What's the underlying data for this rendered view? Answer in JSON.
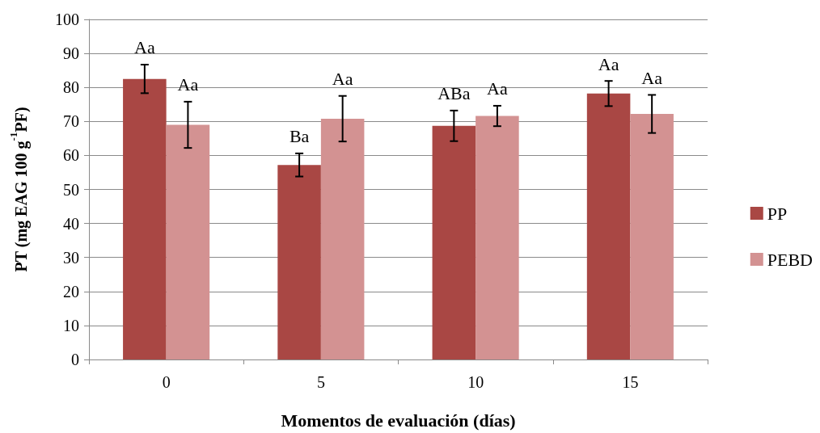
{
  "chart_data": {
    "type": "bar",
    "xlabel": "Momentos de evaluación (días)",
    "ylabel": "PT (mg EAG 100 g$^{-1}$PF)",
    "categories": [
      "0",
      "5",
      "10",
      "15"
    ],
    "series": [
      {
        "name": "PP",
        "color": "#a94744",
        "values": [
          82.5,
          57.2,
          68.7,
          78.2
        ],
        "errors": [
          4.2,
          3.4,
          4.5,
          3.7
        ],
        "value_labels": [
          "Aa",
          "Ba",
          "ABa",
          "Aa"
        ]
      },
      {
        "name": "PEBD",
        "color": "#d39292",
        "values": [
          69.0,
          70.8,
          71.6,
          72.2
        ],
        "errors": [
          6.8,
          6.7,
          3.0,
          5.6
        ],
        "value_labels": [
          "Aa",
          "Aa",
          "Aa",
          "Aa"
        ]
      }
    ],
    "ylim": [
      0,
      100
    ],
    "yticks": [
      0,
      10,
      20,
      30,
      40,
      50,
      60,
      70,
      80,
      90,
      100
    ],
    "grid": "y",
    "legend": "right"
  }
}
